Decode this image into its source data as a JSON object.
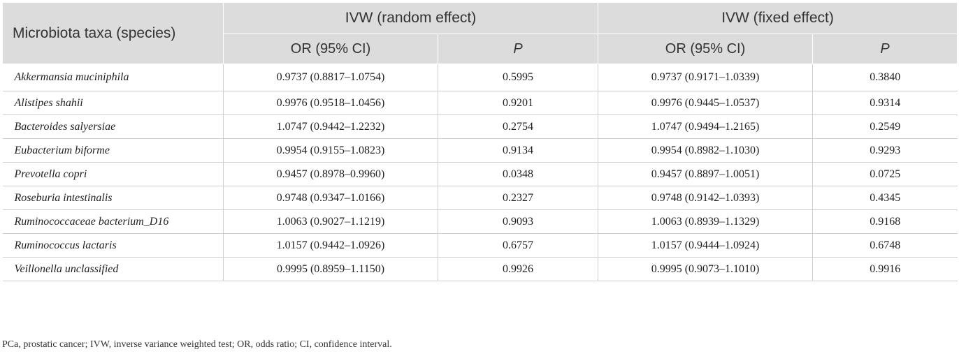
{
  "table": {
    "header": {
      "taxa": "Microbiota taxa (species)",
      "group_random": "IVW (random effect)",
      "group_fixed": "IVW (fixed effect)",
      "or_random": "OR (95% CI)",
      "p_random": "P",
      "or_fixed": "OR (95% CI)",
      "p_fixed": "P"
    },
    "rows": [
      {
        "taxon": "Akkermansia muciniphila",
        "or_random": "0.9737 (0.8817–1.0754)",
        "p_random": "0.5995",
        "or_fixed": "0.9737 (0.9171–1.0339)",
        "p_fixed": "0.3840"
      },
      {
        "taxon": "Alistipes shahii",
        "or_random": "0.9976 (0.9518–1.0456)",
        "p_random": "0.9201",
        "or_fixed": "0.9976 (0.9445–1.0537)",
        "p_fixed": "0.9314"
      },
      {
        "taxon": "Bacteroides salyersiae",
        "or_random": "1.0747 (0.9442–1.2232)",
        "p_random": "0.2754",
        "or_fixed": "1.0747 (0.9494–1.2165)",
        "p_fixed": "0.2549"
      },
      {
        "taxon": "Eubacterium biforme",
        "or_random": "0.9954 (0.9155–1.0823)",
        "p_random": "0.9134",
        "or_fixed": "0.9954 (0.8982–1.1030)",
        "p_fixed": "0.9293"
      },
      {
        "taxon": "Prevotella copri",
        "or_random": "0.9457 (0.8978–0.9960)",
        "p_random": "0.0348",
        "or_fixed": "0.9457 (0.8897–1.0051)",
        "p_fixed": "0.0725"
      },
      {
        "taxon": "Roseburia intestinalis",
        "or_random": "0.9748 (0.9347–1.0166)",
        "p_random": "0.2327",
        "or_fixed": "0.9748 (0.9142–1.0393)",
        "p_fixed": "0.4345"
      },
      {
        "taxon": "Ruminococcaceae bacterium_D16",
        "or_random": "1.0063 (0.9027–1.1219)",
        "p_random": "0.9093",
        "or_fixed": "1.0063 (0.8939–1.1329)",
        "p_fixed": "0.9168"
      },
      {
        "taxon": "Ruminococcus lactaris",
        "or_random": "1.0157 (0.9442–1.0926)",
        "p_random": "0.6757",
        "or_fixed": "1.0157 (0.9444–1.0924)",
        "p_fixed": "0.6748"
      },
      {
        "taxon": "Veillonella unclassified",
        "or_random": "0.9995 (0.8959–1.1150)",
        "p_random": "0.9926",
        "or_fixed": "0.9995 (0.9073–1.1010)",
        "p_fixed": "0.9916"
      }
    ]
  },
  "footnote": "PCa, prostatic cancer; IVW, inverse variance weighted test; OR, odds ratio; CI, confidence interval."
}
